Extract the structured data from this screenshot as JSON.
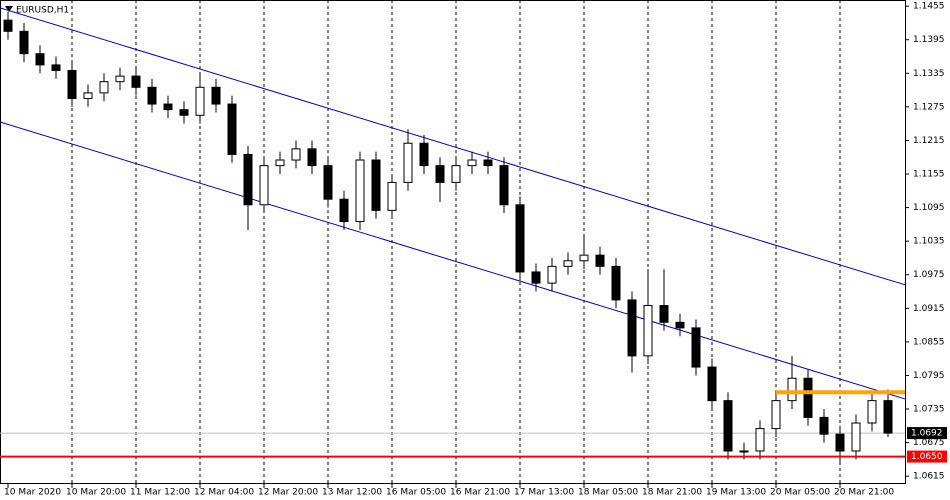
{
  "chart_data": {
    "type": "candlestick",
    "title": "EURUSD,H1",
    "categories": [
      "10 Mar 2020",
      null,
      null,
      null,
      "10 Mar 20:00",
      null,
      null,
      null,
      "11 Mar 12:00",
      null,
      null,
      null,
      "12 Mar 04:00",
      null,
      null,
      null,
      "12 Mar 20:00",
      null,
      null,
      null,
      "13 Mar 12:00",
      null,
      null,
      null,
      "16 Mar 05:00",
      null,
      null,
      null,
      "16 Mar 21:00",
      null,
      null,
      null,
      "17 Mar 13:00",
      null,
      null,
      null,
      "18 Mar 05:00",
      null,
      null,
      null,
      "18 Mar 21:00",
      null,
      null,
      null,
      "19 Mar 13:00",
      null,
      null,
      null,
      "20 Mar 05:00",
      null,
      null,
      null,
      "20 Mar 21:00",
      null,
      null,
      null
    ],
    "open": [
      1.143,
      1.141,
      1.137,
      1.135,
      1.134,
      1.129,
      1.13,
      1.132,
      1.133,
      1.131,
      1.128,
      1.127,
      1.126,
      1.131,
      1.128,
      1.119,
      1.11,
      1.117,
      1.118,
      1.12,
      1.117,
      1.111,
      1.107,
      1.118,
      1.109,
      1.114,
      1.121,
      1.117,
      1.114,
      1.117,
      1.118,
      1.117,
      1.11,
      1.098,
      1.096,
      1.099,
      1.1,
      1.101,
      1.099,
      1.093,
      1.083,
      1.092,
      1.089,
      1.088,
      1.081,
      1.075,
      1.066,
      1.066,
      1.07,
      1.075,
      1.079,
      1.072,
      1.069,
      1.066,
      1.071,
      1.075
    ],
    "high": [
      1.1445,
      1.1425,
      1.1385,
      1.1365,
      1.1355,
      1.1315,
      1.1335,
      1.1345,
      1.1345,
      1.1325,
      1.1295,
      1.1285,
      1.1335,
      1.1325,
      1.1295,
      1.1205,
      1.1185,
      1.1195,
      1.1215,
      1.1215,
      1.1185,
      1.1125,
      1.1195,
      1.1195,
      1.1155,
      1.1235,
      1.1225,
      1.1185,
      1.1185,
      1.1195,
      1.1195,
      1.1185,
      1.1115,
      1.0995,
      1.1005,
      1.1015,
      1.1045,
      1.1025,
      1.1005,
      1.0945,
      1.0985,
      1.0985,
      1.0905,
      1.0895,
      1.0825,
      1.0765,
      1.0675,
      1.0715,
      1.0765,
      1.083,
      1.0805,
      1.0735,
      1.0705,
      1.0725,
      1.0765,
      1.077
    ],
    "low": [
      1.1395,
      1.1355,
      1.1335,
      1.1325,
      1.1275,
      1.1275,
      1.1285,
      1.1305,
      1.1295,
      1.1265,
      1.1255,
      1.1245,
      1.1245,
      1.1265,
      1.1175,
      1.1055,
      1.1085,
      1.1155,
      1.1165,
      1.1155,
      1.1095,
      1.1055,
      1.1055,
      1.1075,
      1.1075,
      1.1125,
      1.1155,
      1.1105,
      1.1125,
      1.1155,
      1.1155,
      1.1085,
      1.0965,
      1.0945,
      1.0945,
      1.0975,
      1.0985,
      1.0975,
      1.0915,
      1.08,
      1.0815,
      1.0875,
      1.0865,
      1.0795,
      1.0735,
      1.0645,
      1.0645,
      1.0645,
      1.0685,
      1.0735,
      1.0705,
      1.0675,
      1.0635,
      1.0645,
      1.0695,
      1.0685
    ],
    "close": [
      1.141,
      1.137,
      1.135,
      1.134,
      1.129,
      1.13,
      1.132,
      1.133,
      1.131,
      1.128,
      1.127,
      1.126,
      1.131,
      1.128,
      1.119,
      1.11,
      1.117,
      1.118,
      1.12,
      1.117,
      1.111,
      1.107,
      1.118,
      1.109,
      1.114,
      1.121,
      1.117,
      1.114,
      1.117,
      1.118,
      1.117,
      1.11,
      1.098,
      1.096,
      1.099,
      1.1,
      1.101,
      1.099,
      1.093,
      1.083,
      1.092,
      1.089,
      1.088,
      1.081,
      1.075,
      1.066,
      1.066,
      1.07,
      1.075,
      1.079,
      1.072,
      1.069,
      1.066,
      1.071,
      1.075,
      1.0692
    ],
    "ylim": [
      1.0601,
      1.1466
    ],
    "yticks": [
      1.1455,
      1.1395,
      1.1335,
      1.1275,
      1.1215,
      1.1155,
      1.1095,
      1.1035,
      1.0975,
      1.0915,
      1.0855,
      1.0795,
      1.0735,
      1.0675,
      1.0615
    ],
    "channel": [
      {
        "color": "#0000cc",
        "values": [
          1.1452,
          1.0957
        ]
      },
      {
        "color": "#0000cc",
        "values": [
          1.1248,
          1.0753
        ]
      }
    ],
    "level": {
      "color": "#ffa500",
      "value": 1.0765,
      "start": "20 Mar 05:00"
    },
    "support": {
      "color": "#ff0000",
      "value": 1.065,
      "label": "1.0650"
    },
    "bid": {
      "color": "#c0c0c0",
      "value": 1.0692
    }
  }
}
